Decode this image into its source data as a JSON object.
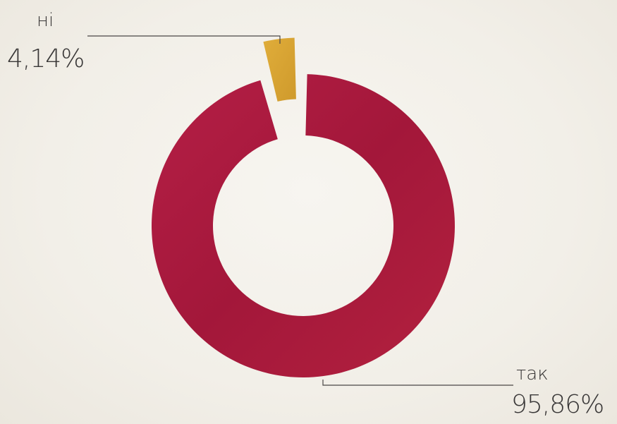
{
  "chart_data": {
    "type": "pie",
    "variant": "donut",
    "categories": [
      "ні",
      "так"
    ],
    "values": [
      4.14,
      95.86
    ],
    "value_labels": [
      "4,14%",
      "95,86%"
    ],
    "colors": [
      "#d9a534",
      "#a81a3d"
    ],
    "exploded": [
      "ні"
    ],
    "legend": "none"
  }
}
